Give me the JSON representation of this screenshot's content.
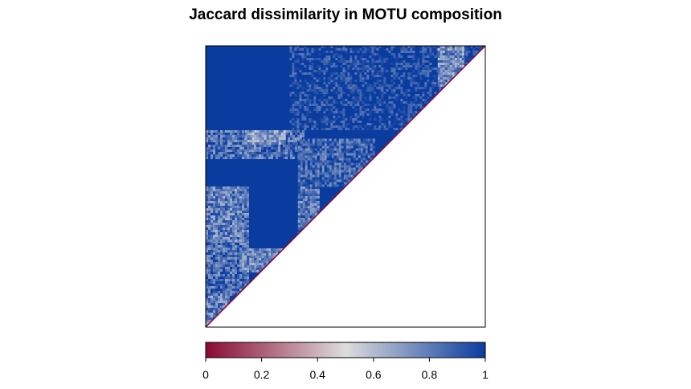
{
  "chart_data": {
    "type": "heatmap",
    "title": "Jaccard dissimilarity in MOTU composition",
    "matrix_shape": "upper-triangular",
    "value_range": [
      0,
      1
    ],
    "dominant_value": 1.0,
    "diagonal_value": 0.0,
    "blocks": [
      {
        "rows": [
          0.0,
          0.3
        ],
        "cols": [
          0.3,
          1.0
        ],
        "value": 0.98
      },
      {
        "rows": [
          0.0,
          0.14
        ],
        "cols": [
          0.83,
          0.92
        ],
        "value": 0.75
      },
      {
        "rows": [
          0.3,
          0.4
        ],
        "cols": [
          0.0,
          0.35
        ],
        "value": 0.85
      },
      {
        "rows": [
          0.3,
          0.35
        ],
        "cols": [
          0.14,
          0.28
        ],
        "value": 0.7
      },
      {
        "rows": [
          0.33,
          0.5
        ],
        "cols": [
          0.33,
          0.6
        ],
        "value": 0.88
      },
      {
        "rows": [
          0.5,
          0.7
        ],
        "cols": [
          0.0,
          0.15
        ],
        "value": 0.8
      },
      {
        "rows": [
          0.5,
          0.7
        ],
        "cols": [
          0.33,
          0.4
        ],
        "value": 0.82
      },
      {
        "rows": [
          0.7,
          0.88
        ],
        "cols": [
          0.0,
          0.15
        ],
        "value": 0.85
      },
      {
        "rows": [
          0.72,
          0.8
        ],
        "cols": [
          0.13,
          0.28
        ],
        "value": 0.75
      },
      {
        "rows": [
          0.88,
          1.0
        ],
        "cols": [
          0.0,
          0.08
        ],
        "value": 0.8
      }
    ],
    "colorbar": {
      "colors": [
        "#8b0a32",
        "#dcdcdc",
        "#0a3ca0"
      ],
      "ticks": [
        0,
        0.2,
        0.4,
        0.6,
        0.8,
        1
      ],
      "tick_labels": [
        "0",
        "0.2",
        "0.4",
        "0.6",
        "0.8",
        "1"
      ]
    },
    "xlabel": "",
    "ylabel": ""
  }
}
